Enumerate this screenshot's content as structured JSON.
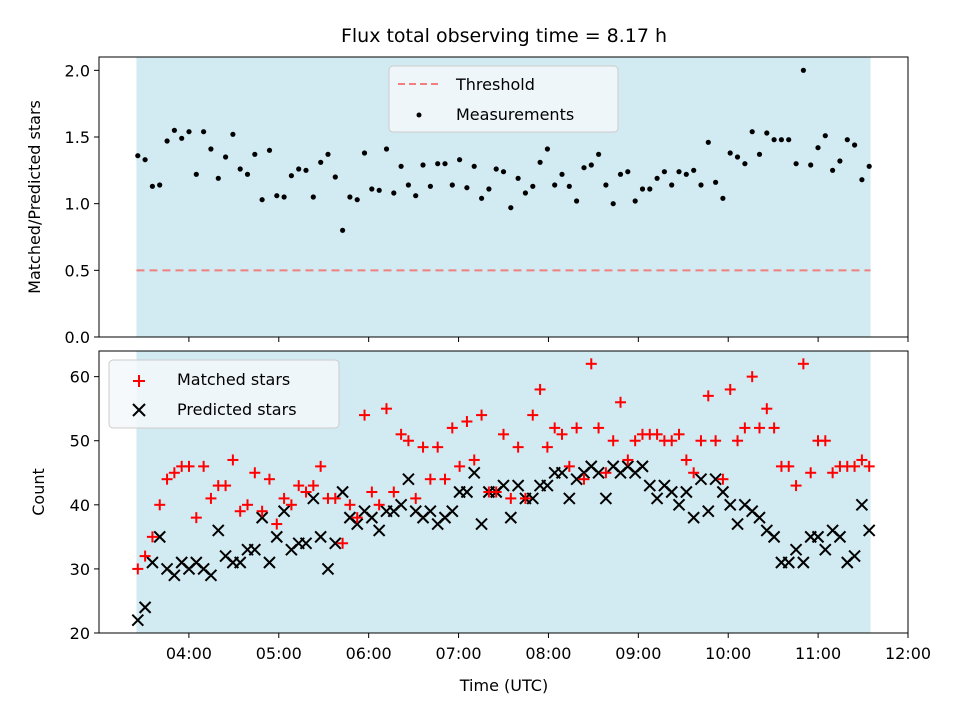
{
  "colors": {
    "span": "#add8e6",
    "threshold": "#f08080",
    "matched": "#ff0000",
    "predicted": "#000000",
    "measurements": "#000000",
    "legend_bg": "#f5f8fb"
  },
  "chart_data": [
    {
      "type": "scatter",
      "title": "Flux total observing time = 8.17 h",
      "xlabel": "",
      "ylabel": "Matched/Predicted stars",
      "ylim": [
        0,
        2.1
      ],
      "xlim": [
        "03:00",
        "12:00"
      ],
      "yticks": [
        "0.0",
        "0.5",
        "1.0",
        "1.5",
        "2.0"
      ],
      "ytick_values": [
        0,
        0.5,
        1.0,
        1.5,
        2.0
      ],
      "observing_span": [
        "03:25",
        "11:35"
      ],
      "legend_position": "upper center",
      "legend": [
        "Threshold",
        "Measurements"
      ],
      "threshold": 0.5,
      "series": [
        {
          "name": "Measurements",
          "y": [
            1.36,
            1.33,
            1.13,
            1.14,
            1.47,
            1.55,
            1.49,
            1.54,
            1.22,
            1.54,
            1.41,
            1.19,
            1.35,
            1.52,
            1.26,
            1.22,
            1.37,
            1.03,
            1.4,
            1.06,
            1.05,
            1.21,
            1.26,
            1.25,
            1.05,
            1.31,
            1.37,
            1.2,
            0.8,
            1.05,
            1.03,
            1.38,
            1.11,
            1.1,
            1.41,
            1.08,
            1.28,
            1.14,
            1.06,
            1.29,
            1.13,
            1.3,
            1.3,
            1.14,
            1.33,
            1.12,
            1.28,
            1.04,
            1.11,
            1.26,
            1.24,
            0.97,
            1.19,
            1.08,
            1.13,
            1.31,
            1.41,
            1.14,
            1.22,
            1.13,
            1.02,
            1.27,
            1.29,
            1.37,
            1.14,
            1.0,
            1.22,
            1.24,
            1.02,
            1.11,
            1.11,
            1.19,
            1.24,
            1.14,
            1.24,
            1.22,
            1.25,
            1.14,
            1.46,
            1.16,
            1.04,
            1.38,
            1.35,
            1.3,
            1.54,
            1.37,
            1.53,
            1.48,
            1.48,
            1.48,
            1.3,
            2.0,
            1.29,
            1.42,
            1.51,
            1.25,
            1.32,
            1.48,
            1.44,
            1.18,
            1.28
          ]
        }
      ]
    },
    {
      "type": "scatter",
      "xlabel": "Time (UTC)",
      "ylabel": "Count",
      "ylim": [
        20,
        64
      ],
      "xlim": [
        "03:00",
        "12:00"
      ],
      "xticks": [
        "04:00",
        "05:00",
        "06:00",
        "07:00",
        "08:00",
        "09:00",
        "10:00",
        "11:00",
        "12:00"
      ],
      "yticks": [
        "20",
        "30",
        "40",
        "50",
        "60"
      ],
      "ytick_values": [
        20,
        30,
        40,
        50,
        60
      ],
      "observing_span": [
        "03:25",
        "11:35"
      ],
      "legend_position": "upper left",
      "legend": [
        "Matched stars",
        "Predicted stars"
      ],
      "series": [
        {
          "name": "Matched stars",
          "y": [
            30,
            32,
            35,
            40,
            44,
            45,
            46,
            46,
            38,
            46,
            41,
            43,
            43,
            47,
            39,
            40,
            45,
            39,
            44,
            37,
            41,
            40,
            43,
            42,
            43,
            46,
            41,
            41,
            34,
            40,
            38,
            54,
            42,
            40,
            55,
            42,
            51,
            50,
            41,
            49,
            44,
            49,
            44,
            52,
            46,
            53,
            47,
            54,
            42,
            42,
            51,
            41,
            49,
            41,
            54,
            58,
            49,
            52,
            51,
            46,
            52,
            44,
            62,
            52,
            45,
            50,
            56,
            47,
            50,
            51,
            51,
            51,
            50,
            50,
            51,
            47,
            45,
            50,
            57,
            50,
            44,
            58,
            50,
            52,
            60,
            52,
            55,
            52,
            46,
            46,
            43,
            62,
            45,
            50,
            50,
            45,
            46,
            46,
            46,
            47,
            46
          ]
        },
        {
          "name": "Predicted stars",
          "y": [
            22,
            24,
            31,
            35,
            30,
            29,
            31,
            30,
            31,
            30,
            29,
            36,
            32,
            31,
            31,
            33,
            33,
            38,
            31,
            35,
            39,
            33,
            34,
            34,
            41,
            35,
            30,
            34,
            42,
            38,
            37,
            39,
            38,
            36,
            39,
            39,
            40,
            44,
            39,
            38,
            39,
            37,
            38,
            39,
            42,
            42,
            45,
            37,
            42,
            42,
            43,
            38,
            43,
            41,
            41,
            43,
            43,
            45,
            45,
            41,
            44,
            45,
            46,
            45,
            41,
            46,
            45,
            46,
            45,
            46,
            43,
            41,
            43,
            42,
            40,
            42,
            38,
            44,
            39,
            44,
            42,
            40,
            37,
            40,
            39,
            38,
            36,
            35,
            31,
            31,
            33,
            31,
            35,
            35,
            33,
            36,
            35,
            31,
            32,
            40,
            36
          ]
        }
      ]
    }
  ]
}
